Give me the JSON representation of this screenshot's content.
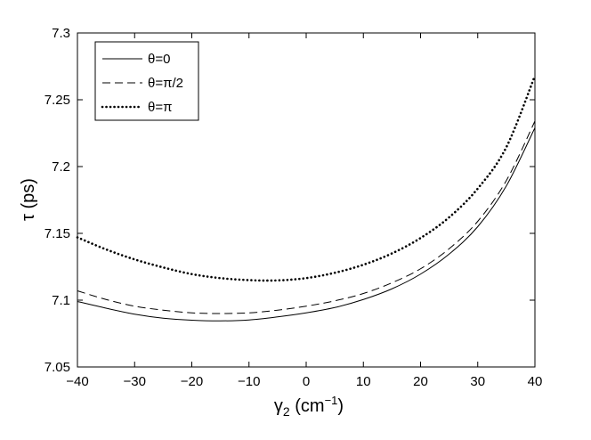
{
  "chart_data": {
    "type": "line",
    "title": "",
    "xlabel": "γ",
    "xlabel_sub": "2",
    "xlabel_unit_open": " (cm",
    "xlabel_unit_exp": "−1",
    "xlabel_unit_close": ")",
    "ylabel": "τ (ps)",
    "xlim": [
      -40,
      40
    ],
    "ylim": [
      7.05,
      7.3
    ],
    "xticks": [
      -40,
      -30,
      -20,
      -10,
      0,
      10,
      20,
      30,
      40
    ],
    "yticks": [
      7.05,
      7.1,
      7.15,
      7.2,
      7.25,
      7.3
    ],
    "xtick_labels": [
      "−40",
      "−30",
      "−20",
      "−10",
      "0",
      "10",
      "20",
      "30",
      "40"
    ],
    "ytick_labels": [
      "7.05",
      "7.1",
      "7.15",
      "7.2",
      "7.25",
      "7.3"
    ],
    "grid": false,
    "legend_position": "top-left",
    "series": [
      {
        "name": "θ=0",
        "style": "solid",
        "color": "#000000",
        "x": [
          -40,
          -35,
          -30,
          -25,
          -20,
          -15,
          -10,
          -5,
          0,
          5,
          10,
          15,
          20,
          25,
          30,
          35,
          40
        ],
        "y": [
          7.099,
          7.094,
          7.0895,
          7.0865,
          7.085,
          7.0845,
          7.0852,
          7.0875,
          7.0905,
          7.0945,
          7.1005,
          7.1085,
          7.1195,
          7.1345,
          7.155,
          7.1855,
          7.229
        ]
      },
      {
        "name": "θ=π/2",
        "style": "dashed",
        "color": "#000000",
        "x": [
          -40,
          -35,
          -30,
          -25,
          -20,
          -15,
          -10,
          -5,
          0,
          5,
          10,
          15,
          20,
          25,
          30,
          35,
          40
        ],
        "y": [
          7.107,
          7.1005,
          7.0955,
          7.0925,
          7.0905,
          7.09,
          7.0905,
          7.0925,
          7.0955,
          7.0995,
          7.105,
          7.113,
          7.1235,
          7.1385,
          7.159,
          7.1895,
          7.234
        ]
      },
      {
        "name": "θ=π",
        "style": "dotted",
        "color": "#000000",
        "x": [
          -40,
          -35,
          -30,
          -25,
          -20,
          -15,
          -10,
          -5,
          0,
          5,
          10,
          15,
          20,
          25,
          30,
          35,
          40
        ],
        "y": [
          7.147,
          7.138,
          7.1305,
          7.1245,
          7.1195,
          7.1165,
          7.115,
          7.1148,
          7.1165,
          7.1205,
          7.1265,
          7.135,
          7.1465,
          7.162,
          7.1835,
          7.2145,
          7.268
        ]
      }
    ]
  }
}
